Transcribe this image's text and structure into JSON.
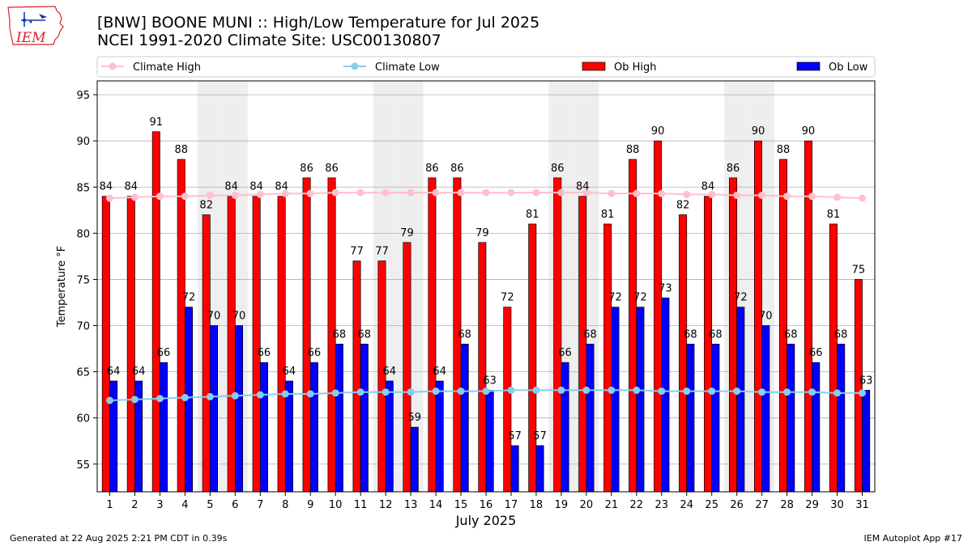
{
  "header": {
    "title_line1": "[BNW] BOONE MUNI :: High/Low Temperature for Jul 2025",
    "title_line2": "NCEI 1991-2020 Climate Site: USC00130807",
    "logo_text": "IEM"
  },
  "footer": {
    "generated": "Generated at 22 Aug 2025 2:21 PM CDT in 0.39s",
    "app": "IEM Autoplot App #17"
  },
  "chart_data": {
    "type": "bar",
    "title": "[BNW] BOONE MUNI :: High/Low Temperature for Jul 2025",
    "xlabel": "July 2025",
    "ylabel": "Temperature °F",
    "ylim": [
      52,
      96.5
    ],
    "yticks": [
      55,
      60,
      65,
      70,
      75,
      80,
      85,
      90,
      95
    ],
    "categories": [
      "1",
      "2",
      "3",
      "4",
      "5",
      "6",
      "7",
      "8",
      "9",
      "10",
      "11",
      "12",
      "13",
      "14",
      "15",
      "16",
      "17",
      "18",
      "19",
      "20",
      "21",
      "22",
      "23",
      "24",
      "25",
      "26",
      "27",
      "28",
      "29",
      "30",
      "31"
    ],
    "weekend_shaded_days": [
      5,
      6,
      12,
      13,
      19,
      20,
      26,
      27
    ],
    "legend": [
      "Climate High",
      "Climate Low",
      "Ob High",
      "Ob Low"
    ],
    "legend_placement": "top",
    "colors": {
      "ob_high": "#ff0000",
      "ob_low": "#0000ff",
      "climate_high": "#ffc0cb",
      "climate_low": "#87ceeb",
      "weekend": "#eeeeee",
      "grid": "#b0b0b0"
    },
    "series": [
      {
        "name": "Ob High",
        "kind": "bar",
        "values": [
          84,
          84,
          91,
          88,
          82,
          84,
          84,
          84,
          86,
          86,
          77,
          77,
          79,
          86,
          86,
          79,
          72,
          81,
          86,
          84,
          81,
          88,
          90,
          82,
          84,
          86,
          90,
          88,
          90,
          81,
          75
        ]
      },
      {
        "name": "Ob Low",
        "kind": "bar",
        "values": [
          64,
          64,
          66,
          72,
          70,
          70,
          66,
          64,
          66,
          68,
          68,
          64,
          59,
          64,
          68,
          63,
          57,
          57,
          66,
          68,
          72,
          72,
          73,
          68,
          68,
          72,
          70,
          68,
          66,
          68,
          63
        ]
      },
      {
        "name": "Climate High",
        "kind": "line",
        "values": [
          83.8,
          83.9,
          84.0,
          84.0,
          84.1,
          84.1,
          84.2,
          84.3,
          84.3,
          84.4,
          84.4,
          84.4,
          84.4,
          84.4,
          84.4,
          84.4,
          84.4,
          84.4,
          84.4,
          84.4,
          84.3,
          84.3,
          84.3,
          84.2,
          84.2,
          84.1,
          84.1,
          84.0,
          84.0,
          83.9,
          83.8
        ]
      },
      {
        "name": "Climate Low",
        "kind": "line",
        "values": [
          61.9,
          62.0,
          62.1,
          62.2,
          62.3,
          62.4,
          62.5,
          62.6,
          62.6,
          62.7,
          62.8,
          62.8,
          62.8,
          62.9,
          62.9,
          62.9,
          63.0,
          63.0,
          63.0,
          63.0,
          63.0,
          63.0,
          62.9,
          62.9,
          62.9,
          62.9,
          62.8,
          62.8,
          62.8,
          62.7,
          62.7
        ]
      }
    ]
  }
}
